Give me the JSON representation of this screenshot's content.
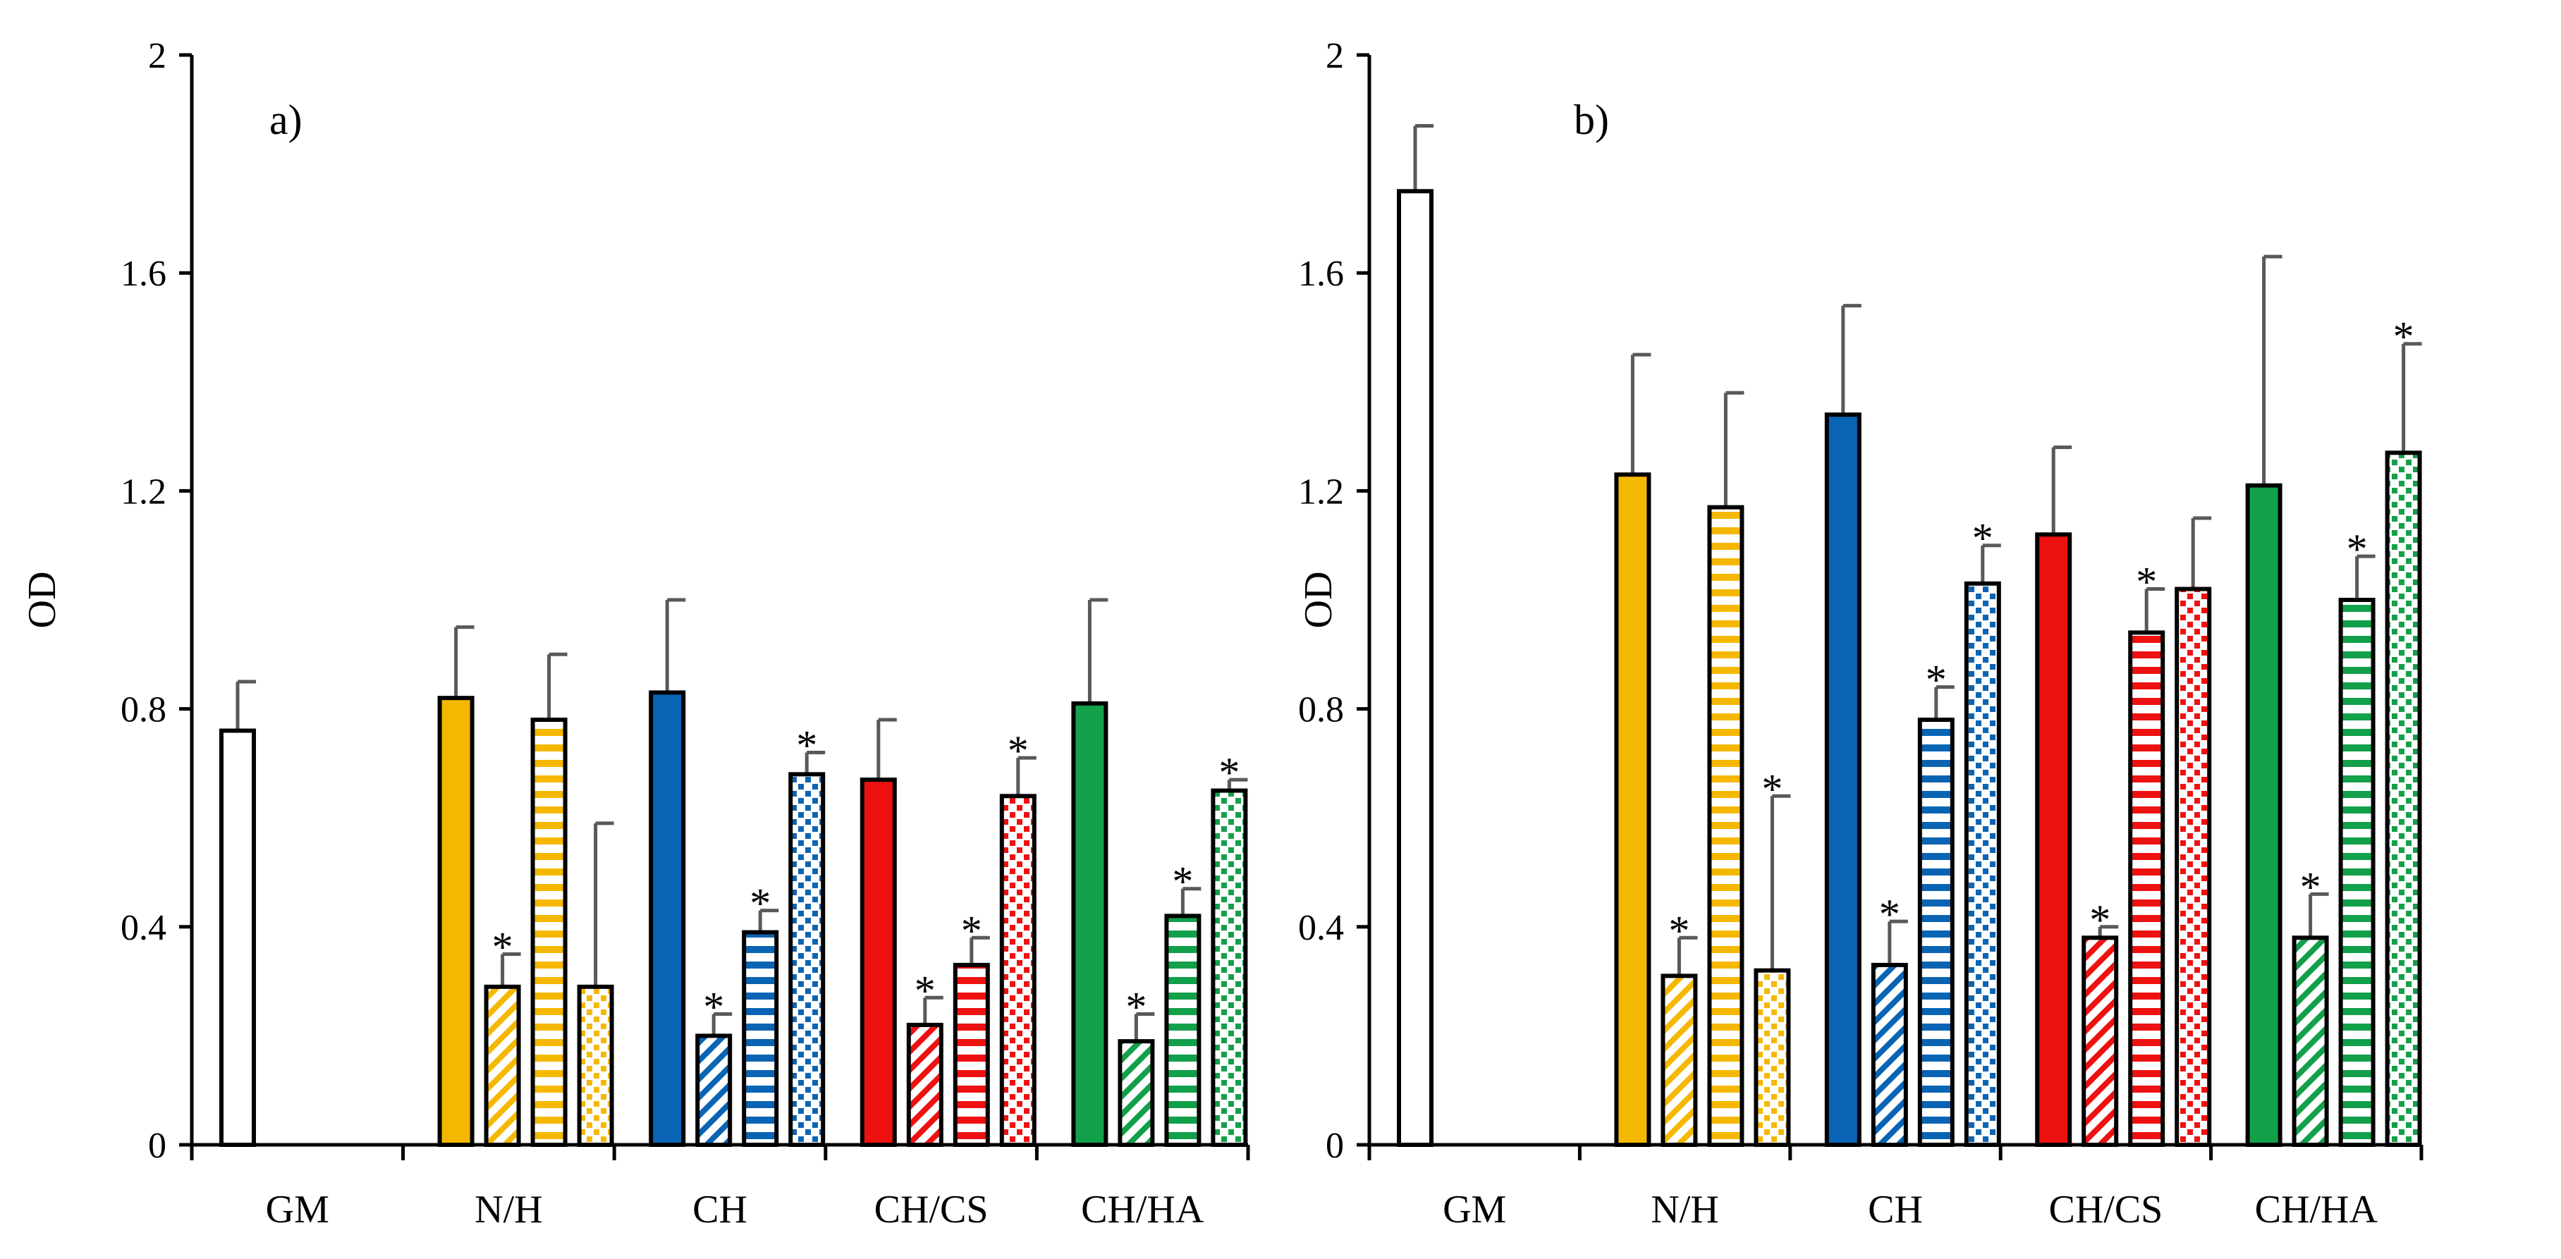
{
  "colors": {
    "GM": "#ffffff",
    "N/H": "#f5b800",
    "CH": "#0a64b4",
    "CH/CS": "#ee1111",
    "CH/HA": "#12a04a",
    "outline": "#000000",
    "errorbar": "#595959"
  },
  "chart_data": [
    {
      "type": "bar",
      "title": "a)",
      "ylabel": "OD",
      "xlabel": "",
      "ylim": [
        0,
        2
      ],
      "yticks": [
        "0",
        "0.4",
        "0.8",
        "1.2",
        "1.6",
        "2"
      ],
      "categories": [
        "GM",
        "N/H",
        "CH",
        "CH/CS",
        "CH/HA"
      ],
      "patterns": [
        "solid",
        "diagonal",
        "horizontal",
        "dotted"
      ],
      "bars": [
        {
          "category": "GM",
          "pattern": "solid",
          "value": 0.76,
          "error": 0.09,
          "star": false
        },
        {
          "category": "N/H",
          "pattern": "solid",
          "value": 0.82,
          "error": 0.13,
          "star": false
        },
        {
          "category": "N/H",
          "pattern": "diagonal",
          "value": 0.29,
          "error": 0.06,
          "star": true
        },
        {
          "category": "N/H",
          "pattern": "horizontal",
          "value": 0.78,
          "error": 0.12,
          "star": false
        },
        {
          "category": "N/H",
          "pattern": "dotted",
          "value": 0.29,
          "error": 0.3,
          "star": false
        },
        {
          "category": "CH",
          "pattern": "solid",
          "value": 0.83,
          "error": 0.17,
          "star": false
        },
        {
          "category": "CH",
          "pattern": "diagonal",
          "value": 0.2,
          "error": 0.04,
          "star": true
        },
        {
          "category": "CH",
          "pattern": "horizontal",
          "value": 0.39,
          "error": 0.04,
          "star": true
        },
        {
          "category": "CH",
          "pattern": "dotted",
          "value": 0.68,
          "error": 0.04,
          "star": true
        },
        {
          "category": "CH/CS",
          "pattern": "solid",
          "value": 0.67,
          "error": 0.11,
          "star": false
        },
        {
          "category": "CH/CS",
          "pattern": "diagonal",
          "value": 0.22,
          "error": 0.05,
          "star": true
        },
        {
          "category": "CH/CS",
          "pattern": "horizontal",
          "value": 0.33,
          "error": 0.05,
          "star": true
        },
        {
          "category": "CH/CS",
          "pattern": "dotted",
          "value": 0.64,
          "error": 0.07,
          "star": true
        },
        {
          "category": "CH/HA",
          "pattern": "solid",
          "value": 0.81,
          "error": 0.19,
          "star": false
        },
        {
          "category": "CH/HA",
          "pattern": "diagonal",
          "value": 0.19,
          "error": 0.05,
          "star": true
        },
        {
          "category": "CH/HA",
          "pattern": "horizontal",
          "value": 0.42,
          "error": 0.05,
          "star": true
        },
        {
          "category": "CH/HA",
          "pattern": "dotted",
          "value": 0.65,
          "error": 0.02,
          "star": true
        }
      ]
    },
    {
      "type": "bar",
      "title": "b)",
      "ylabel": "OD",
      "xlabel": "",
      "ylim": [
        0,
        2
      ],
      "yticks": [
        "0",
        "0.4",
        "0.8",
        "1.2",
        "1.6",
        "2"
      ],
      "categories": [
        "GM",
        "N/H",
        "CH",
        "CH/CS",
        "CH/HA"
      ],
      "patterns": [
        "solid",
        "diagonal",
        "horizontal",
        "dotted"
      ],
      "bars": [
        {
          "category": "GM",
          "pattern": "solid",
          "value": 1.75,
          "error": 0.12,
          "star": false
        },
        {
          "category": "N/H",
          "pattern": "solid",
          "value": 1.23,
          "error": 0.22,
          "star": false
        },
        {
          "category": "N/H",
          "pattern": "diagonal",
          "value": 0.31,
          "error": 0.07,
          "star": true
        },
        {
          "category": "N/H",
          "pattern": "horizontal",
          "value": 1.17,
          "error": 0.21,
          "star": false
        },
        {
          "category": "N/H",
          "pattern": "dotted",
          "value": 0.32,
          "error": 0.32,
          "star": true
        },
        {
          "category": "CH",
          "pattern": "solid",
          "value": 1.34,
          "error": 0.2,
          "star": false
        },
        {
          "category": "CH",
          "pattern": "diagonal",
          "value": 0.33,
          "error": 0.08,
          "star": true
        },
        {
          "category": "CH",
          "pattern": "horizontal",
          "value": 0.78,
          "error": 0.06,
          "star": true
        },
        {
          "category": "CH",
          "pattern": "dotted",
          "value": 1.03,
          "error": 0.07,
          "star": true
        },
        {
          "category": "CH/CS",
          "pattern": "solid",
          "value": 1.12,
          "error": 0.16,
          "star": false
        },
        {
          "category": "CH/CS",
          "pattern": "diagonal",
          "value": 0.38,
          "error": 0.02,
          "star": true
        },
        {
          "category": "CH/CS",
          "pattern": "horizontal",
          "value": 0.94,
          "error": 0.08,
          "star": true
        },
        {
          "category": "CH/CS",
          "pattern": "dotted",
          "value": 1.02,
          "error": 0.13,
          "star": false
        },
        {
          "category": "CH/HA",
          "pattern": "solid",
          "value": 1.21,
          "error": 0.42,
          "star": false
        },
        {
          "category": "CH/HA",
          "pattern": "diagonal",
          "value": 0.38,
          "error": 0.08,
          "star": true
        },
        {
          "category": "CH/HA",
          "pattern": "horizontal",
          "value": 1.0,
          "error": 0.08,
          "star": true
        },
        {
          "category": "CH/HA",
          "pattern": "dotted",
          "value": 1.27,
          "error": 0.2,
          "star": true
        }
      ]
    }
  ]
}
